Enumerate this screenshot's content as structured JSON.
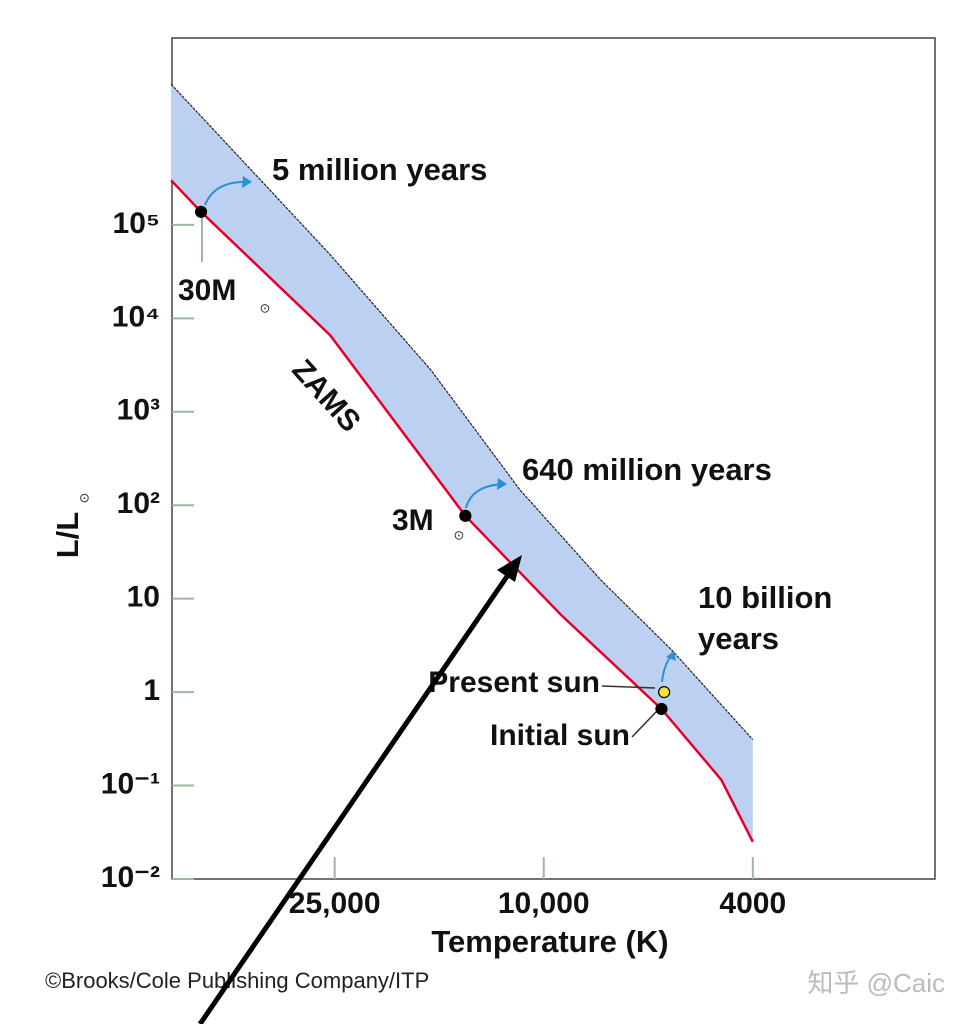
{
  "chart_data": {
    "type": "band",
    "xlabel": "Temperature (K)",
    "ylabel": "L/L",
    "solar_symbol": "⊙",
    "xscale": "log",
    "yscale": "log",
    "xlim": [
      51000,
      1800
    ],
    "ylim": [
      0.01,
      10000000
    ],
    "xticks": [
      {
        "value": 25000,
        "label": "25,000"
      },
      {
        "value": 10000,
        "label": "10,000"
      },
      4000
    ],
    "yticks": [
      {
        "value": 100000,
        "label": "10⁵"
      },
      {
        "value": 10000,
        "label": "10⁴"
      },
      {
        "value": 1000,
        "label": "10³"
      },
      {
        "value": 100,
        "label": "10²"
      },
      10,
      1,
      {
        "value": 0.1,
        "label": "10⁻¹"
      },
      {
        "value": 0.01,
        "label": "10⁻²"
      }
    ],
    "band_color": "#bcd1f1",
    "band_top": {
      "x": [
        51200,
        33300,
        25500,
        16400,
        11100,
        7800,
        5700,
        4000
      ],
      "values": [
        3200000,
        240000,
        48000,
        2800,
        146,
        16,
        2.8,
        0.31
      ]
    },
    "zams": {
      "name": "ZAMS",
      "color": "#e3002b",
      "x": [
        51200,
        44900,
        25500,
        14100,
        9270,
        5970,
        4590,
        4000
      ],
      "values": [
        300000,
        138000,
        6600,
        77,
        6.7,
        0.66,
        0.115,
        0.025
      ]
    },
    "points": {
      "labels": [
        "30M",
        "3M",
        "Present sun",
        "Initial sun"
      ],
      "x": [
        44900,
        14100,
        5900,
        5970
      ],
      "values": [
        138000,
        77,
        1,
        0.66
      ],
      "colors": [
        "#000000",
        "#000000",
        "#f6e23a",
        "#000000"
      ]
    },
    "annotations": [
      "5 million years",
      "640 million years",
      "10 billion",
      "years"
    ],
    "credit": "©Brooks/Cole Publishing Company/ITP",
    "watermark": "知乎 @Caic"
  }
}
